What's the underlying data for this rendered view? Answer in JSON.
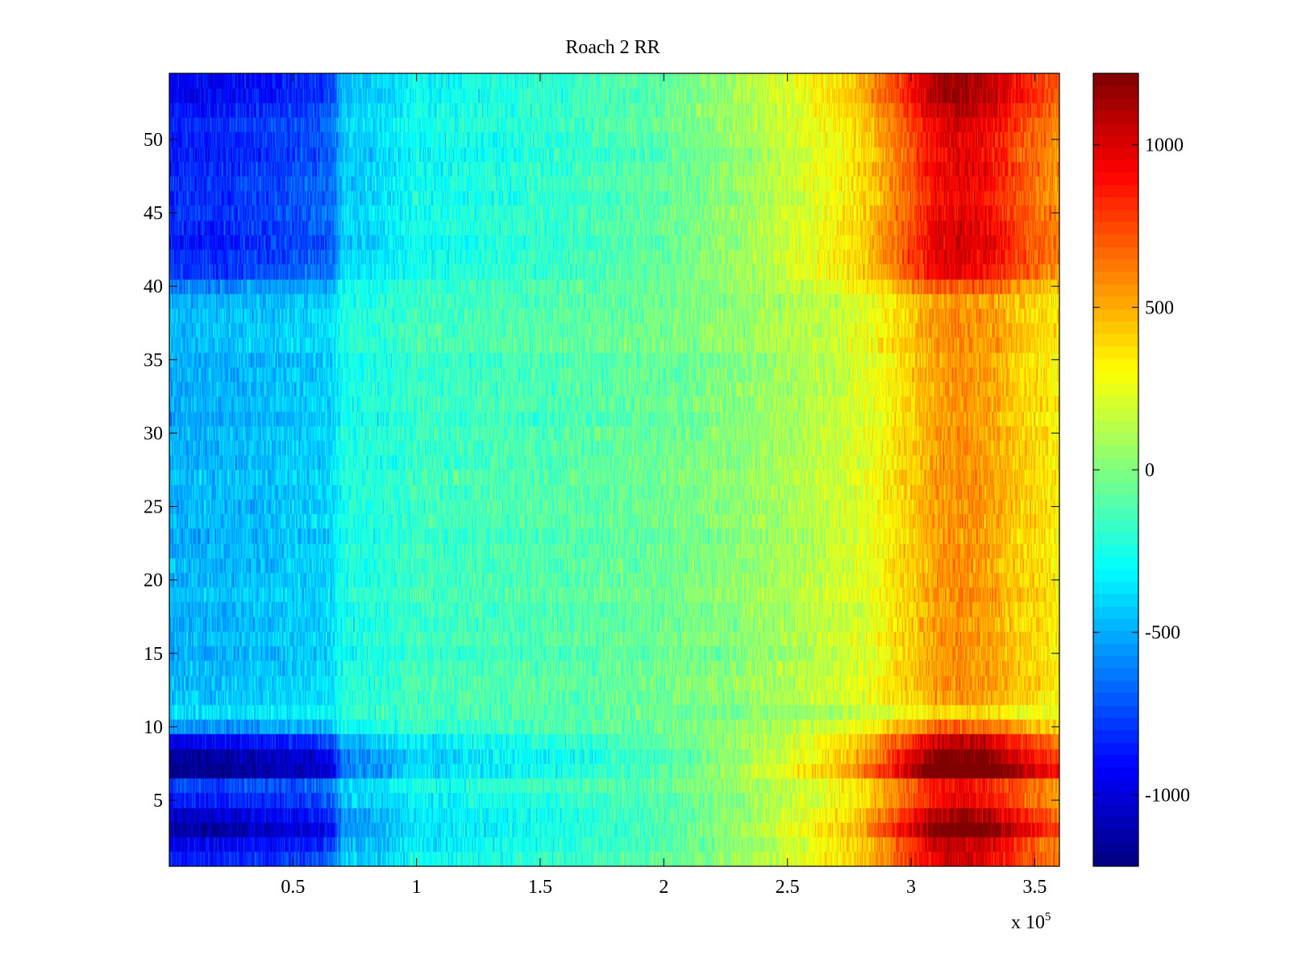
{
  "chart_data": {
    "type": "heatmap",
    "title": "Roach 2 RR",
    "xlabel": "",
    "ylabel": "",
    "x_exponent_label": "x 10",
    "x_exponent_power": "5",
    "xlim": [
      0,
      360000
    ],
    "ylim": [
      0.5,
      54.5
    ],
    "xticks": [
      50000,
      100000,
      150000,
      200000,
      250000,
      300000,
      350000
    ],
    "xtick_labels": [
      "0.5",
      "1",
      "1.5",
      "2",
      "2.5",
      "3",
      "3.5"
    ],
    "yticks": [
      5,
      10,
      15,
      20,
      25,
      30,
      35,
      40,
      45,
      50
    ],
    "ytick_labels": [
      "5",
      "10",
      "15",
      "20",
      "25",
      "30",
      "35",
      "40",
      "45",
      "50"
    ],
    "rows": 54,
    "colormap": "jet",
    "color_range": [
      -1220,
      1220
    ],
    "colorbar_ticks": [
      -1000,
      -500,
      0,
      500,
      1000
    ],
    "colorbar_tick_labels": [
      "-1000",
      "-500",
      "0",
      "500",
      "1000"
    ],
    "column_profile": {
      "x": [
        0,
        20000,
        40000,
        60000,
        66000,
        70000,
        90000,
        100000,
        106000,
        130000,
        160000,
        200000,
        230000,
        260000,
        280000,
        300000,
        310000,
        320000,
        330000,
        345000,
        360000
      ],
      "values": [
        -650,
        -640,
        -600,
        -550,
        -520,
        -330,
        -280,
        -200,
        -220,
        -180,
        -140,
        -60,
        40,
        180,
        300,
        560,
        720,
        760,
        720,
        560,
        440
      ]
    },
    "row_strength": {
      "rows": [
        1,
        2,
        3,
        4,
        5,
        6,
        7,
        8,
        9,
        10,
        11,
        12,
        40,
        41,
        42,
        43,
        44,
        45,
        46,
        47,
        48,
        49,
        50,
        51,
        52,
        53,
        54
      ],
      "values": [
        1.35,
        1.45,
        1.75,
        1.55,
        1.3,
        1.2,
        1.9,
        1.75,
        1.45,
        0.9,
        0.55,
        0.7,
        0.95,
        1.25,
        1.3,
        1.35,
        1.3,
        1.25,
        1.25,
        1.25,
        1.3,
        1.3,
        1.3,
        1.3,
        1.4,
        1.5,
        1.5
      ],
      "default": 0.75
    },
    "noise_amplitude": 160,
    "grid": false,
    "legend": "colorbar-right"
  }
}
